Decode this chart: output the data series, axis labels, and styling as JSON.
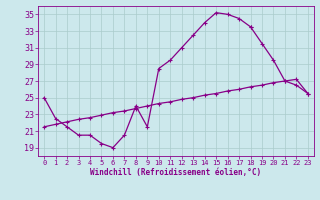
{
  "xlabel": "Windchill (Refroidissement éolien,°C)",
  "bg_color": "#cce8ec",
  "grid_color": "#aacccc",
  "line_color": "#880088",
  "xlim": [
    -0.5,
    23.5
  ],
  "ylim": [
    18,
    36
  ],
  "yticks": [
    19,
    21,
    23,
    25,
    27,
    29,
    31,
    33,
    35
  ],
  "xticks": [
    0,
    1,
    2,
    3,
    4,
    5,
    6,
    7,
    8,
    9,
    10,
    11,
    12,
    13,
    14,
    15,
    16,
    17,
    18,
    19,
    20,
    21,
    22,
    23
  ],
  "line1_x": [
    0,
    1,
    2,
    3,
    4,
    5,
    6,
    7,
    8,
    9,
    10,
    11,
    12,
    13,
    14,
    15,
    16,
    17,
    18
  ],
  "line1_y": [
    25,
    22.5,
    21.5,
    20.5,
    20.5,
    19.5,
    19,
    20.5,
    24,
    21.5,
    28.5,
    29.5,
    31,
    32.5,
    34,
    35.2,
    35,
    34.5,
    33.5
  ],
  "line2_x": [
    18,
    19,
    20,
    21,
    22,
    23
  ],
  "line2_y": [
    33.5,
    31.5,
    29.5,
    27,
    26.5,
    25.5
  ],
  "line3_x": [
    0,
    1,
    2,
    3,
    4,
    5,
    6,
    7,
    8,
    9,
    10,
    11,
    12,
    13,
    14,
    15,
    16,
    17,
    18,
    19,
    20,
    21,
    22,
    23
  ],
  "line3_y": [
    21.5,
    21.8,
    22.1,
    22.4,
    22.6,
    22.9,
    23.2,
    23.4,
    23.7,
    24.0,
    24.3,
    24.5,
    24.8,
    25.0,
    25.3,
    25.5,
    25.8,
    26.0,
    26.3,
    26.5,
    26.8,
    27.0,
    27.2,
    25.5
  ]
}
